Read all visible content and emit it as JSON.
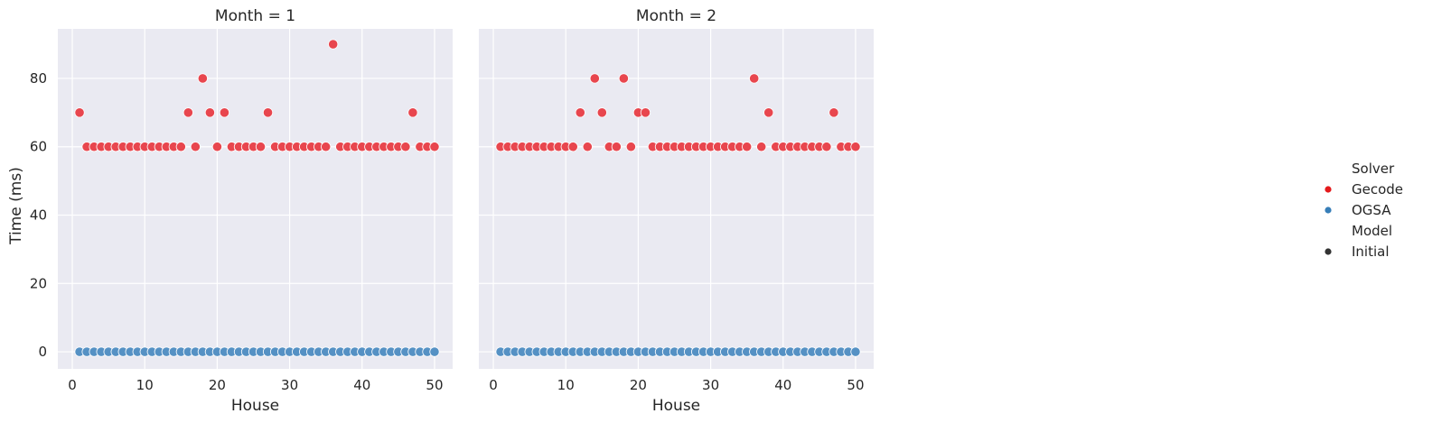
{
  "chart_data": {
    "type": "scatter",
    "x_label": "House",
    "y_label": "Time (ms)",
    "xlim": [
      -2,
      52.5
    ],
    "ylim": [
      -5,
      94.5
    ],
    "x_ticks": [
      0,
      10,
      20,
      30,
      40,
      50
    ],
    "y_ticks": [
      0,
      20,
      40,
      60,
      80
    ],
    "grid": true,
    "legend": {
      "placement": "right",
      "hue_title": "Solver",
      "hue_entries": [
        {
          "label": "Gecode",
          "color": "#e41a1c"
        },
        {
          "label": "OGSA",
          "color": "#377eb8"
        }
      ],
      "style_title": "Model",
      "style_entries": [
        {
          "label": "Initial",
          "color": "#333333"
        }
      ]
    },
    "colors": {
      "Gecode": "#e8464e",
      "OGSA": "#5591c4",
      "panel_bg": "#eaeaf2",
      "grid": "#ffffff"
    },
    "panels": [
      {
        "title": "Month = 1",
        "x": [
          1,
          2,
          3,
          4,
          5,
          6,
          7,
          8,
          9,
          10,
          11,
          12,
          13,
          14,
          15,
          16,
          17,
          18,
          19,
          20,
          21,
          22,
          23,
          24,
          25,
          26,
          27,
          28,
          29,
          30,
          31,
          32,
          33,
          34,
          35,
          36,
          37,
          38,
          39,
          40,
          41,
          42,
          43,
          44,
          45,
          46,
          47,
          48,
          49,
          50
        ],
        "series": [
          {
            "name": "Gecode",
            "values": [
              70,
              60,
              60,
              60,
              60,
              60,
              60,
              60,
              60,
              60,
              60,
              60,
              60,
              60,
              60,
              70,
              60,
              80,
              70,
              60,
              70,
              60,
              60,
              60,
              60,
              60,
              70,
              60,
              60,
              60,
              60,
              60,
              60,
              60,
              60,
              90,
              60,
              60,
              60,
              60,
              60,
              60,
              60,
              60,
              60,
              60,
              70,
              60,
              60,
              60
            ]
          },
          {
            "name": "OGSA",
            "values": [
              0,
              0,
              0,
              0,
              0,
              0,
              0,
              0,
              0,
              0,
              0,
              0,
              0,
              0,
              0,
              0,
              0,
              0,
              0,
              0,
              0,
              0,
              0,
              0,
              0,
              0,
              0,
              0,
              0,
              0,
              0,
              0,
              0,
              0,
              0,
              0,
              0,
              0,
              0,
              0,
              0,
              0,
              0,
              0,
              0,
              0,
              0,
              0,
              0,
              0
            ]
          }
        ]
      },
      {
        "title": "Month = 2",
        "x": [
          1,
          2,
          3,
          4,
          5,
          6,
          7,
          8,
          9,
          10,
          11,
          12,
          13,
          14,
          15,
          16,
          17,
          18,
          19,
          20,
          21,
          22,
          23,
          24,
          25,
          26,
          27,
          28,
          29,
          30,
          31,
          32,
          33,
          34,
          35,
          36,
          37,
          38,
          39,
          40,
          41,
          42,
          43,
          44,
          45,
          46,
          47,
          48,
          49,
          50
        ],
        "series": [
          {
            "name": "Gecode",
            "values": [
              60,
              60,
              60,
              60,
              60,
              60,
              60,
              60,
              60,
              60,
              60,
              70,
              60,
              80,
              70,
              60,
              60,
              80,
              60,
              70,
              70,
              60,
              60,
              60,
              60,
              60,
              60,
              60,
              60,
              60,
              60,
              60,
              60,
              60,
              60,
              80,
              60,
              70,
              60,
              60,
              60,
              60,
              60,
              60,
              60,
              60,
              70,
              60,
              60,
              60
            ]
          },
          {
            "name": "OGSA",
            "values": [
              0,
              0,
              0,
              0,
              0,
              0,
              0,
              0,
              0,
              0,
              0,
              0,
              0,
              0,
              0,
              0,
              0,
              0,
              0,
              0,
              0,
              0,
              0,
              0,
              0,
              0,
              0,
              0,
              0,
              0,
              0,
              0,
              0,
              0,
              0,
              0,
              0,
              0,
              0,
              0,
              0,
              0,
              0,
              0,
              0,
              0,
              0,
              0,
              0,
              0
            ]
          }
        ]
      }
    ]
  }
}
